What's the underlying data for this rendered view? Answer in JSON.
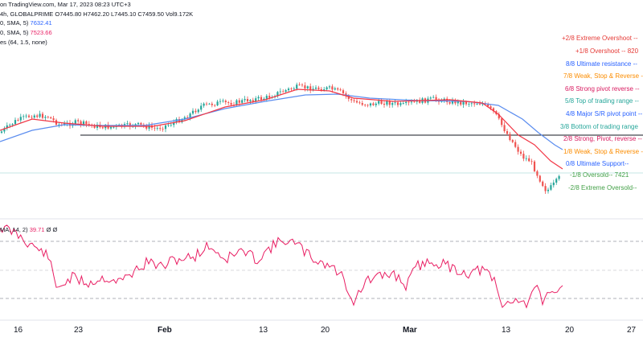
{
  "header": {
    "source_line": "on TradingView.com, Mar 17, 2023 08:23 UTC+3",
    "symbol_line": "4h, GLOBALPRIME",
    "ohlc": "O7445.80  H7462.20  L7445.10  C7459.50  Vol9.172K",
    "sma1_label": "0, SMA, 5)",
    "sma1_value": "7632.41",
    "sma2_label": "0, SMA, 5)",
    "sma2_value": "7523.66",
    "murrey_label": "es (64, 1.5, none)"
  },
  "murrey_levels": [
    {
      "text": "+2/8 Extreme Overshoot --",
      "color": "#e53935"
    },
    {
      "text": "+1/8 Overshoot --  820",
      "color": "#e53935"
    },
    {
      "text": "8/8 Ultimate resistance --",
      "color": "#2962ff"
    },
    {
      "text": "7/8 Weak, Stop & Reverse --",
      "color": "#fb8c00"
    },
    {
      "text": "6/8 Strong pivot reverse --",
      "color": "#d81b60"
    },
    {
      "text": "5/8 Top of trading range --",
      "color": "#26a69a"
    },
    {
      "text": "4/8 Major S/R pivot point --",
      "color": "#2962ff"
    },
    {
      "text": "3/8 Bottom of trading range",
      "color": "#26a69a"
    },
    {
      "text": "2/8 Strong, Pivot, reverse --",
      "color": "#d81b60"
    },
    {
      "text": "1/8 Weak, Stop & Reverse --",
      "color": "#fb8c00"
    },
    {
      "text": "0/8 Ultimate Support--",
      "color": "#2962ff"
    },
    {
      "text": "-1/8 Oversold--  7421",
      "color": "#43a047"
    },
    {
      "text": "-2/8 Extreme Oversold--",
      "color": "#43a047"
    }
  ],
  "rsi": {
    "label": "MA, 14, 2)",
    "value": "39.71",
    "extra": "Ø  Ø"
  },
  "time_axis": [
    {
      "label": "16",
      "bold": false
    },
    {
      "label": "23",
      "bold": false
    },
    {
      "label": "Feb",
      "bold": true
    },
    {
      "label": "13",
      "bold": false
    },
    {
      "label": "20",
      "bold": false
    },
    {
      "label": "Mar",
      "bold": true
    },
    {
      "label": "13",
      "bold": false
    },
    {
      "label": "20",
      "bold": false
    },
    {
      "label": "27",
      "bold": false
    }
  ],
  "colors": {
    "up": "#26a69a",
    "down": "#ef5350",
    "sma_red": "#f23645",
    "sma_blue": "#5b8def",
    "rsi_line": "#e91e63"
  }
}
